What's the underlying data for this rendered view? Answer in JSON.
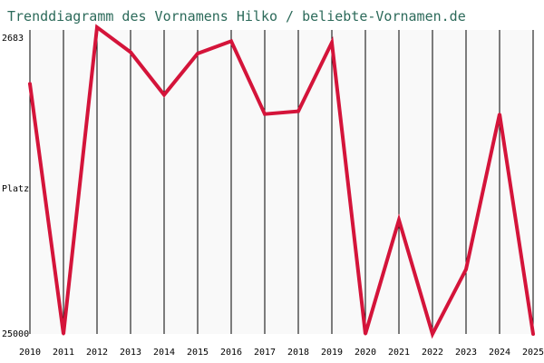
{
  "chart_data": {
    "type": "line",
    "title": "Trenddiagramm des Vornamens Hilko / beliebte-Vornamen.de",
    "ylabel": "Platz",
    "y_top_label": "2683",
    "y_bottom_label": "25000",
    "ylim": [
      25000,
      2683
    ],
    "y_inverted": true,
    "grid": "vertical",
    "x": [
      "2010",
      "2011",
      "2012",
      "2013",
      "2014",
      "2015",
      "2016",
      "2017",
      "2018",
      "2019",
      "2020",
      "2021",
      "2022",
      "2023",
      "2024",
      "2025"
    ],
    "series": [
      {
        "values": [
          6800,
          25000,
          2683,
          4500,
          7600,
          4600,
          3700,
          9000,
          8800,
          3800,
          25000,
          16700,
          25000,
          20300,
          9000,
          25000
        ]
      }
    ]
  },
  "colors": {
    "line": "#d4143a",
    "title": "#2c6a5a",
    "plot_background": "#f9f9f9",
    "grid": "#000000"
  }
}
